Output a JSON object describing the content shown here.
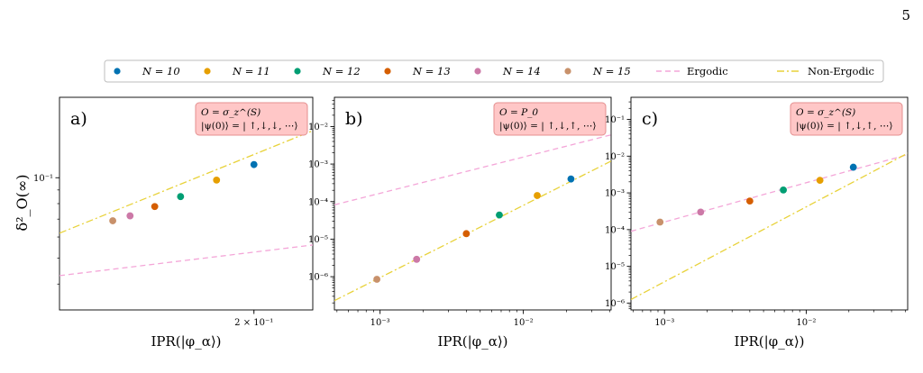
{
  "page_number": "5",
  "legend": {
    "entries": [
      {
        "label": "N = 10",
        "color": "#0072b2"
      },
      {
        "label": "N = 11",
        "color": "#e69f00"
      },
      {
        "label": "N = 12",
        "color": "#009e73"
      },
      {
        "label": "N = 13",
        "color": "#d55e00"
      },
      {
        "label": "N = 14",
        "color": "#cc79a7"
      },
      {
        "label": "N = 15",
        "color": "#c8916b"
      },
      {
        "label": "Ergodic",
        "color": "#f4a6d8",
        "style": "dashed"
      },
      {
        "label": "Non-Ergodic",
        "color": "#e8d23a",
        "style": "dashdot"
      }
    ]
  },
  "shared_ylabel": "δ²_O(∞)",
  "chart_data": [
    {
      "type": "scatter",
      "panel": "a)",
      "annotation": [
        "O = σ_z^(S)",
        "|ψ(0)⟩ = | ↑,↓,↓, ⋯⟩"
      ],
      "xlabel": "IPR(|φ_α⟩)",
      "xscale": "log",
      "yscale": "log",
      "xlim": [
        0.126,
        0.23
      ],
      "ylim": [
        0.032,
        0.2
      ],
      "xticks": [
        {
          "value": 0.2,
          "label": "2 × 10⁻¹"
        }
      ],
      "yticks": [
        {
          "value": 0.1,
          "label": "10⁻¹"
        }
      ],
      "points": [
        {
          "N": "N = 15",
          "x": 0.143,
          "y": 0.069
        },
        {
          "N": "N = 14",
          "x": 0.149,
          "y": 0.072
        },
        {
          "N": "N = 13",
          "x": 0.158,
          "y": 0.078
        },
        {
          "N": "N = 12",
          "x": 0.168,
          "y": 0.085
        },
        {
          "N": "N = 11",
          "x": 0.183,
          "y": 0.098
        },
        {
          "N": "N = 10",
          "x": 0.2,
          "y": 0.112
        }
      ],
      "lines": [
        {
          "name": "Ergodic",
          "points": [
            [
              0.126,
              0.043
            ],
            [
              0.23,
              0.056
            ]
          ]
        },
        {
          "name": "Non-Ergodic",
          "points": [
            [
              0.126,
              0.062
            ],
            [
              0.23,
              0.15
            ]
          ]
        }
      ]
    },
    {
      "type": "scatter",
      "panel": "b)",
      "annotation": [
        "O = P_0",
        "|ψ(0)⟩ = | ↑,↓,↑, ⋯⟩"
      ],
      "xlabel": "IPR(|φ_α⟩)",
      "xscale": "log",
      "yscale": "log",
      "xlim": [
        0.00048,
        0.041
      ],
      "ylim": [
        1.3e-07,
        0.06
      ],
      "xticks": [
        {
          "value": 0.001,
          "label": "10⁻³"
        },
        {
          "value": 0.01,
          "label": "10⁻²"
        }
      ],
      "yticks": [
        {
          "value": 1e-06,
          "label": "10⁻⁶"
        },
        {
          "value": 1e-05,
          "label": "10⁻⁵"
        },
        {
          "value": 0.0001,
          "label": "10⁻⁴"
        },
        {
          "value": 0.001,
          "label": "10⁻³"
        },
        {
          "value": 0.01,
          "label": "10⁻²"
        }
      ],
      "points": [
        {
          "N": "N = 15",
          "x": 0.00095,
          "y": 8.5e-07
        },
        {
          "N": "N = 14",
          "x": 0.0018,
          "y": 2.9e-06
        },
        {
          "N": "N = 13",
          "x": 0.004,
          "y": 1.4e-05
        },
        {
          "N": "N = 12",
          "x": 0.0068,
          "y": 4.4e-05
        },
        {
          "N": "N = 11",
          "x": 0.0125,
          "y": 0.000145
        },
        {
          "N": "N = 10",
          "x": 0.0215,
          "y": 0.0004
        }
      ],
      "lines": [
        {
          "name": "Ergodic",
          "points": [
            [
              0.00048,
              8.2e-05
            ],
            [
              0.041,
              0.006
            ]
          ]
        },
        {
          "name": "Non-Ergodic",
          "points": [
            [
              0.00048,
              2.3e-07
            ],
            [
              0.041,
              0.0012
            ]
          ]
        }
      ]
    },
    {
      "type": "scatter",
      "panel": "c)",
      "annotation": [
        "O = σ_z^(S)",
        "|ψ(0)⟩ = | ↑,↓,↑, ⋯⟩"
      ],
      "xlabel": "IPR(|φ_α⟩)",
      "xscale": "log",
      "yscale": "log",
      "xlim": [
        0.00058,
        0.052
      ],
      "ylim": [
        6.5e-07,
        0.4
      ],
      "xticks": [
        {
          "value": 0.001,
          "label": "10⁻³"
        },
        {
          "value": 0.01,
          "label": "10⁻²"
        }
      ],
      "yticks": [
        {
          "value": 1e-06,
          "label": "10⁻⁶"
        },
        {
          "value": 1e-05,
          "label": "10⁻⁵"
        },
        {
          "value": 0.0001,
          "label": "10⁻⁴"
        },
        {
          "value": 0.001,
          "label": "10⁻³"
        },
        {
          "value": 0.01,
          "label": "10⁻²"
        },
        {
          "value": 0.1,
          "label": "10⁻¹"
        }
      ],
      "points": [
        {
          "N": "N = 15",
          "x": 0.00093,
          "y": 0.00016
        },
        {
          "N": "N = 14",
          "x": 0.0018,
          "y": 0.0003
        },
        {
          "N": "N = 13",
          "x": 0.004,
          "y": 0.0006
        },
        {
          "N": "N = 12",
          "x": 0.0069,
          "y": 0.0012
        },
        {
          "N": "N = 11",
          "x": 0.0125,
          "y": 0.0022
        },
        {
          "N": "N = 10",
          "x": 0.0215,
          "y": 0.005
        }
      ],
      "lines": [
        {
          "name": "Ergodic",
          "points": [
            [
              0.00058,
              9e-05
            ],
            [
              0.052,
              0.011
            ]
          ]
        },
        {
          "name": "Non-Ergodic",
          "points": [
            [
              0.00058,
              1.25e-06
            ],
            [
              0.052,
              0.012
            ]
          ]
        }
      ]
    }
  ]
}
